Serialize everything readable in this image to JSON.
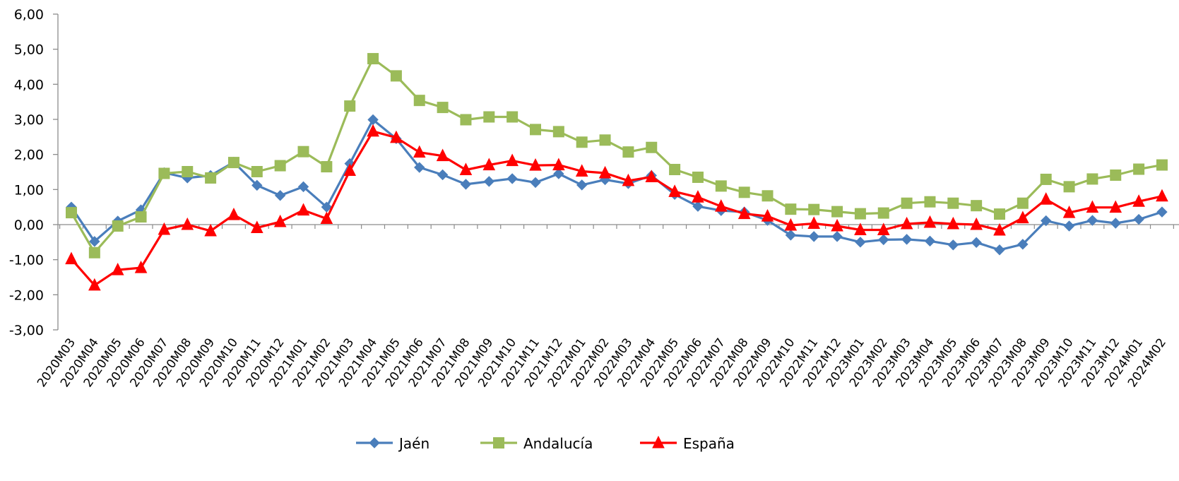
{
  "chart_data": {
    "type": "line",
    "title": "",
    "xlabel": "",
    "ylabel": "",
    "ylim": [
      -3,
      6
    ],
    "yticks": [
      "6,00",
      "5,00",
      "4,00",
      "3,00",
      "2,00",
      "1,00",
      "0,00",
      "-1,00",
      "-2,00",
      "-3,00"
    ],
    "grid": false,
    "legend_position": "bottom",
    "categories": [
      "2020M03",
      "2020M04",
      "2020M05",
      "2020M06",
      "2020M07",
      "2020M08",
      "2020M09",
      "2020M10",
      "2020M11",
      "2020M12",
      "2021M01",
      "2021M02",
      "2021M03",
      "2021M04",
      "2021M05",
      "2021M06",
      "2021M07",
      "2021M08",
      "2021M09",
      "2021M10",
      "2021M11",
      "2021M12",
      "2022M01",
      "2022M02",
      "2022M03",
      "2022M04",
      "2022M05",
      "2022M06",
      "2022M07",
      "2022M08",
      "2022M09",
      "2022M10",
      "2022M11",
      "2022M12",
      "2023M01",
      "2023M02",
      "2023M03",
      "2023M04",
      "2023M05",
      "2023M06",
      "2023M07",
      "2023M08",
      "2023M09",
      "2023M10",
      "2023M11",
      "2023M12",
      "2024M01",
      "2024M02"
    ],
    "series": [
      {
        "name": "Jaén",
        "color": "#4a7ebb",
        "marker": "diamond",
        "values": [
          0.5,
          -0.48,
          0.1,
          0.42,
          1.48,
          1.33,
          1.4,
          1.78,
          1.12,
          0.83,
          1.08,
          0.5,
          1.74,
          2.99,
          2.45,
          1.63,
          1.42,
          1.15,
          1.23,
          1.31,
          1.2,
          1.45,
          1.13,
          1.28,
          1.17,
          1.4,
          0.86,
          0.52,
          0.4,
          0.36,
          0.12,
          -0.3,
          -0.34,
          -0.34,
          -0.5,
          -0.43,
          -0.42,
          -0.47,
          -0.58,
          -0.51,
          -0.72,
          -0.56,
          0.11,
          -0.04,
          0.12,
          0.04,
          0.15,
          0.36
        ]
      },
      {
        "name": "Andalucía",
        "color": "#9bbb59",
        "marker": "square",
        "values": [
          0.34,
          -0.8,
          -0.04,
          0.22,
          1.46,
          1.51,
          1.33,
          1.77,
          1.51,
          1.68,
          2.08,
          1.65,
          3.38,
          4.73,
          4.24,
          3.54,
          3.34,
          2.99,
          3.07,
          3.07,
          2.71,
          2.65,
          2.35,
          2.41,
          2.07,
          2.2,
          1.57,
          1.35,
          1.1,
          0.92,
          0.82,
          0.44,
          0.43,
          0.37,
          0.31,
          0.33,
          0.61,
          0.65,
          0.61,
          0.54,
          0.3,
          0.61,
          1.29,
          1.08,
          1.3,
          1.41,
          1.58,
          1.7
        ]
      },
      {
        "name": "España",
        "color": "#ff0000",
        "marker": "triangle",
        "values": [
          -0.98,
          -1.73,
          -1.29,
          -1.23,
          -0.14,
          0.0,
          -0.18,
          0.28,
          -0.09,
          0.08,
          0.41,
          0.17,
          1.54,
          2.66,
          2.48,
          2.06,
          1.96,
          1.56,
          1.7,
          1.82,
          1.69,
          1.7,
          1.52,
          1.47,
          1.25,
          1.36,
          0.94,
          0.78,
          0.52,
          0.31,
          0.24,
          -0.02,
          0.03,
          -0.04,
          -0.15,
          -0.15,
          0.02,
          0.06,
          0.02,
          0.0,
          -0.16,
          0.19,
          0.72,
          0.34,
          0.49,
          0.49,
          0.66,
          0.81
        ]
      }
    ]
  }
}
